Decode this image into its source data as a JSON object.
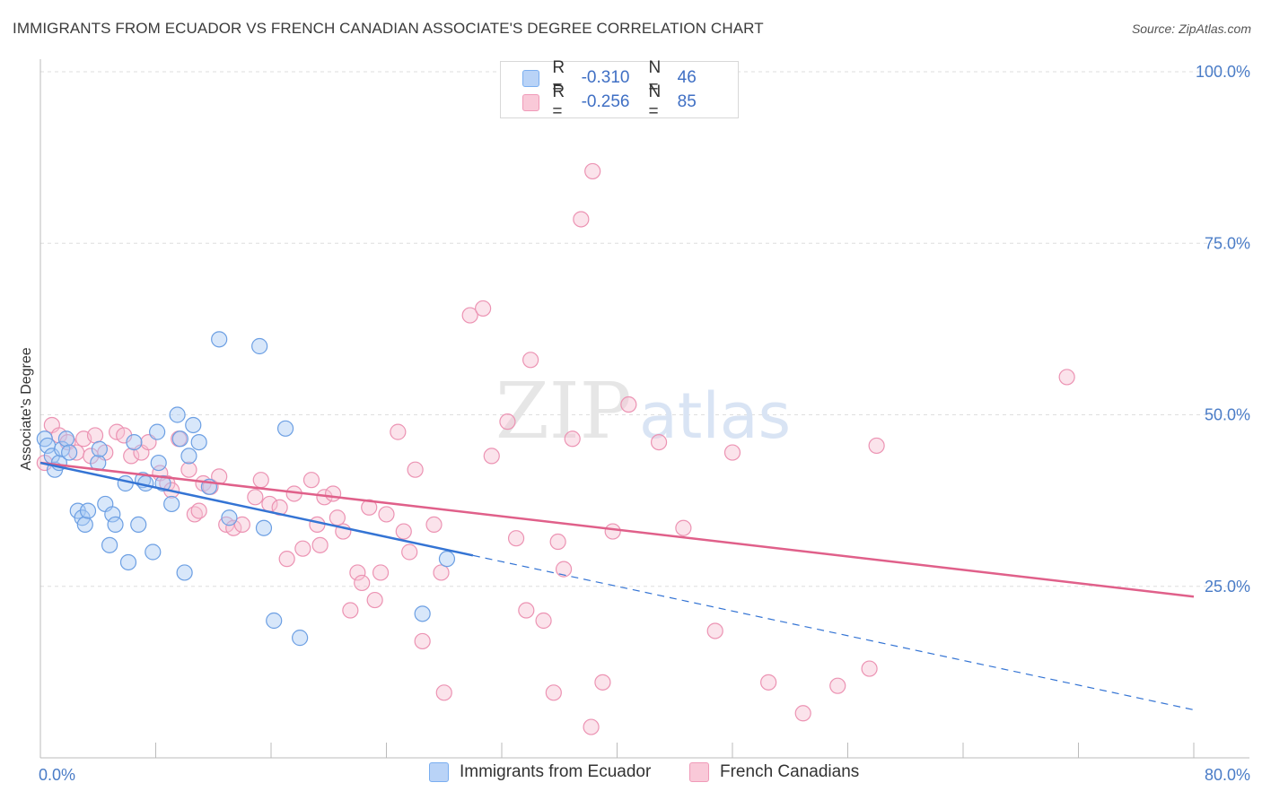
{
  "title": "IMMIGRANTS FROM ECUADOR VS FRENCH CANADIAN ASSOCIATE'S DEGREE CORRELATION CHART",
  "source": "Source: ZipAtlas.com",
  "watermark": {
    "zip": "ZIP",
    "atlas": "atlas"
  },
  "legend": {
    "rows": [
      {
        "r_label": "R =",
        "r_value": "-0.310",
        "n_label": "N =",
        "n_value": "46"
      },
      {
        "r_label": "R =",
        "r_value": "-0.256",
        "n_label": "N =",
        "n_value": "85"
      }
    ]
  },
  "bottom_legend": [
    "Immigrants from Ecuador",
    "French Canadians"
  ],
  "chart_data": {
    "type": "scatter",
    "title": "IMMIGRANTS FROM ECUADOR VS FRENCH CANADIAN ASSOCIATE'S DEGREE CORRELATION CHART",
    "xlabel": "",
    "ylabel": "Associate's Degree",
    "xlim": [
      0,
      80
    ],
    "ylim": [
      0,
      100
    ],
    "x_tick_labels": [
      "0.0%",
      "80.0%"
    ],
    "y_ticks": [
      25,
      50,
      75,
      100
    ],
    "y_tick_labels": [
      "25.0%",
      "50.0%",
      "75.0%",
      "100.0%"
    ],
    "grid": true,
    "legend_position": "top-center",
    "colors": {
      "ecuador": "#7aaef0",
      "french": "#f09ab8",
      "ecuador_line": "#3474d4",
      "french_line": "#e0608a"
    },
    "series": [
      {
        "name": "Immigrants from Ecuador",
        "points": [
          [
            0.3,
            46.5
          ],
          [
            0.5,
            45.5
          ],
          [
            0.8,
            44
          ],
          [
            1.0,
            42
          ],
          [
            1.3,
            43
          ],
          [
            1.5,
            45
          ],
          [
            1.8,
            46.5
          ],
          [
            2.0,
            44.5
          ],
          [
            2.6,
            36
          ],
          [
            2.9,
            35
          ],
          [
            3.1,
            34
          ],
          [
            3.3,
            36
          ],
          [
            4.0,
            43
          ],
          [
            4.1,
            45
          ],
          [
            4.5,
            37
          ],
          [
            4.8,
            31
          ],
          [
            5.0,
            35.5
          ],
          [
            5.2,
            34
          ],
          [
            5.9,
            40
          ],
          [
            6.1,
            28.5
          ],
          [
            6.5,
            46
          ],
          [
            6.8,
            34
          ],
          [
            7.1,
            40.5
          ],
          [
            7.3,
            40
          ],
          [
            7.8,
            30
          ],
          [
            8.1,
            47.5
          ],
          [
            8.2,
            43
          ],
          [
            8.5,
            40
          ],
          [
            9.1,
            37
          ],
          [
            9.5,
            50
          ],
          [
            9.7,
            46.5
          ],
          [
            10.0,
            27
          ],
          [
            10.3,
            44
          ],
          [
            10.6,
            48.5
          ],
          [
            11.0,
            46
          ],
          [
            11.7,
            39.5
          ],
          [
            12.4,
            61
          ],
          [
            13.1,
            35
          ],
          [
            15.2,
            60
          ],
          [
            15.5,
            33.5
          ],
          [
            16.2,
            20
          ],
          [
            17.0,
            48
          ],
          [
            18.0,
            17.5
          ],
          [
            26.5,
            21
          ],
          [
            28.2,
            29
          ]
        ],
        "trend": {
          "x": [
            0,
            30
          ],
          "y": [
            43,
            29.5
          ],
          "dashed_extension": {
            "x": [
              30,
              80
            ],
            "y": [
              29.5,
              7
            ]
          }
        }
      },
      {
        "name": "French Canadians",
        "points": [
          [
            0.3,
            43
          ],
          [
            0.8,
            48.5
          ],
          [
            1.3,
            47
          ],
          [
            1.9,
            46
          ],
          [
            2.5,
            44.5
          ],
          [
            3.0,
            46.5
          ],
          [
            3.5,
            44
          ],
          [
            3.8,
            47
          ],
          [
            4.5,
            44.5
          ],
          [
            5.3,
            47.5
          ],
          [
            5.8,
            47
          ],
          [
            6.3,
            44
          ],
          [
            7.0,
            44.5
          ],
          [
            7.5,
            46
          ],
          [
            8.3,
            41.5
          ],
          [
            8.8,
            40
          ],
          [
            9.1,
            39
          ],
          [
            9.6,
            46.5
          ],
          [
            10.3,
            42
          ],
          [
            10.7,
            35.5
          ],
          [
            11.0,
            36
          ],
          [
            11.3,
            40
          ],
          [
            11.8,
            39.5
          ],
          [
            12.4,
            41
          ],
          [
            12.9,
            34
          ],
          [
            13.4,
            33.5
          ],
          [
            14.0,
            34
          ],
          [
            14.9,
            38
          ],
          [
            15.3,
            40.5
          ],
          [
            15.9,
            37
          ],
          [
            16.6,
            36.5
          ],
          [
            17.1,
            29
          ],
          [
            17.6,
            38.5
          ],
          [
            18.2,
            30.5
          ],
          [
            18.8,
            40.5
          ],
          [
            19.2,
            34
          ],
          [
            19.4,
            31
          ],
          [
            19.7,
            38
          ],
          [
            20.3,
            38.5
          ],
          [
            20.6,
            35
          ],
          [
            21.0,
            33
          ],
          [
            21.5,
            21.5
          ],
          [
            22.0,
            27
          ],
          [
            22.3,
            25.5
          ],
          [
            22.8,
            36.5
          ],
          [
            23.2,
            23
          ],
          [
            23.6,
            27
          ],
          [
            24.0,
            35.5
          ],
          [
            24.8,
            47.5
          ],
          [
            25.2,
            33
          ],
          [
            25.6,
            30
          ],
          [
            26.0,
            42
          ],
          [
            26.5,
            17
          ],
          [
            27.3,
            34
          ],
          [
            27.8,
            27
          ],
          [
            28.0,
            9.5
          ],
          [
            29.8,
            64.5
          ],
          [
            30.7,
            65.5
          ],
          [
            31.3,
            44
          ],
          [
            32.4,
            49
          ],
          [
            33.0,
            32
          ],
          [
            33.7,
            21.5
          ],
          [
            34.0,
            58
          ],
          [
            34.9,
            20
          ],
          [
            35.6,
            9.5
          ],
          [
            35.9,
            31.5
          ],
          [
            36.3,
            27.5
          ],
          [
            36.9,
            46.5
          ],
          [
            37.5,
            78.5
          ],
          [
            38.2,
            4.5
          ],
          [
            38.3,
            85.5
          ],
          [
            39.0,
            11
          ],
          [
            39.7,
            33
          ],
          [
            40.8,
            51.5
          ],
          [
            42.9,
            46
          ],
          [
            44.6,
            33.5
          ],
          [
            46.8,
            18.5
          ],
          [
            48.0,
            44.5
          ],
          [
            50.5,
            11
          ],
          [
            52.9,
            6.5
          ],
          [
            55.3,
            10.5
          ],
          [
            57.5,
            13
          ],
          [
            58.0,
            45.5
          ],
          [
            71.2,
            55.5
          ]
        ],
        "trend": {
          "x": [
            0,
            80
          ],
          "y": [
            43,
            23.5
          ]
        }
      }
    ]
  }
}
